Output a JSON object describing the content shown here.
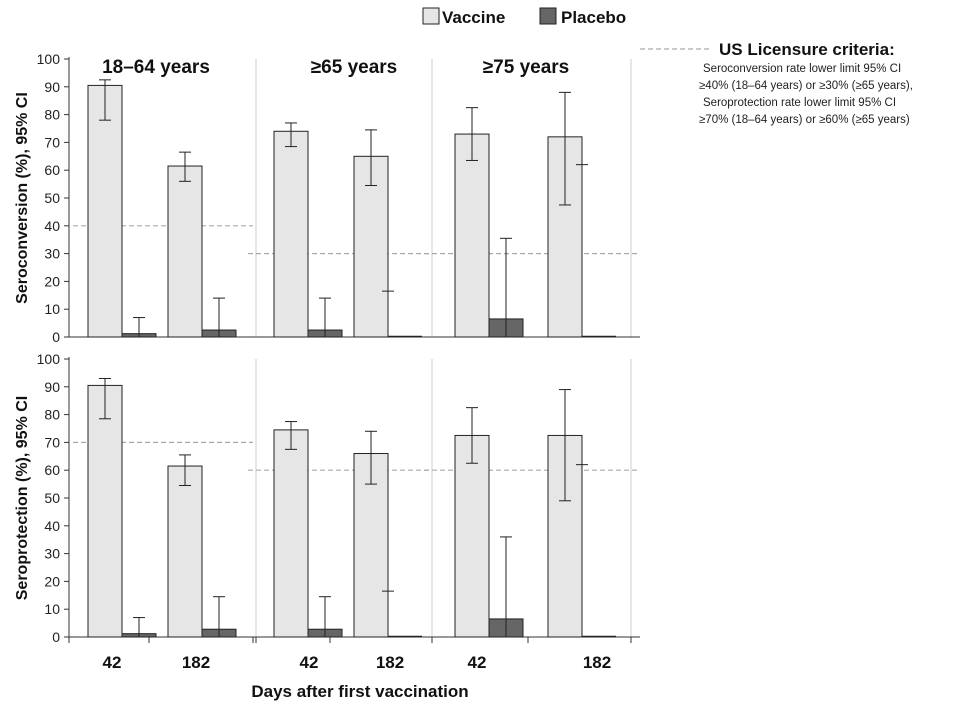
{
  "legend": {
    "items": [
      {
        "label": "Vaccine",
        "color": "#e6e6e6"
      },
      {
        "label": "Placebo",
        "color": "#666666"
      }
    ]
  },
  "criteria": {
    "title": "US Licensure criteria:",
    "lines": [
      "Seroconversion rate lower limit 95% CI",
      "≥40% (18–64  years)  or ≥30%  (≥65 years),",
      "Seroprotection rate lower limit 95% CI",
      "≥70% (18–64  years)  or ≥60%  (≥65 years)"
    ]
  },
  "colors": {
    "vaccine": "#e6e6e6",
    "placebo": "#666666",
    "outline": "#222222",
    "threshold": "#aaaaaa",
    "separator": "#cccccc"
  },
  "chart_data": {
    "type": "bar",
    "xlabel": "Days after first vaccination",
    "ylim": [
      0,
      100
    ],
    "yticks": [
      0,
      10,
      20,
      30,
      40,
      50,
      60,
      70,
      80,
      90,
      100
    ],
    "age_groups": [
      "18–64 years",
      "≥65 years",
      "≥75 years"
    ],
    "days": [
      "42",
      "182"
    ],
    "panels": [
      {
        "ylabel": "Seroconversion (%), 95% CI",
        "thresholds": [
          40,
          30,
          30
        ],
        "groups": [
          {
            "age": "18–64 years",
            "timepoints": [
              {
                "day": "42",
                "vaccine": {
                  "value": 90.5,
                  "ci": [
                    78,
                    92.5
                  ]
                },
                "placebo": {
                  "value": 1.2,
                  "ci": [
                    0,
                    7
                  ]
                }
              },
              {
                "day": "182",
                "vaccine": {
                  "value": 61.5,
                  "ci": [
                    56,
                    66.5
                  ]
                },
                "placebo": {
                  "value": 2.5,
                  "ci": [
                    0,
                    14
                  ]
                }
              }
            ]
          },
          {
            "age": "≥65 years",
            "timepoints": [
              {
                "day": "42",
                "vaccine": {
                  "value": 74,
                  "ci": [
                    68.5,
                    77
                  ]
                },
                "placebo": {
                  "value": 2.5,
                  "ci": [
                    0,
                    14
                  ]
                }
              },
              {
                "day": "182",
                "vaccine": {
                  "value": 65,
                  "ci": [
                    54.5,
                    74.5
                  ]
                },
                "placebo": {
                  "value": 0,
                  "ci": [
                    0,
                    16.5
                  ]
                }
              }
            ]
          },
          {
            "age": "≥75 years",
            "timepoints": [
              {
                "day": "42",
                "vaccine": {
                  "value": 73,
                  "ci": [
                    63.5,
                    82.5
                  ]
                },
                "placebo": {
                  "value": 6.5,
                  "ci": [
                    0,
                    35.5
                  ]
                }
              },
              {
                "day": "182",
                "vaccine": {
                  "value": 72,
                  "ci": [
                    47.5,
                    88
                  ]
                },
                "placebo": {
                  "value": 0,
                  "ci": [
                    0,
                    62
                  ]
                }
              }
            ]
          }
        ]
      },
      {
        "ylabel": "Seroprotection (%), 95% CI",
        "thresholds": [
          70,
          60,
          60
        ],
        "groups": [
          {
            "age": "18–64 years",
            "timepoints": [
              {
                "day": "42",
                "vaccine": {
                  "value": 90.5,
                  "ci": [
                    78.5,
                    93
                  ]
                },
                "placebo": {
                  "value": 1.2,
                  "ci": [
                    0,
                    7
                  ]
                }
              },
              {
                "day": "182",
                "vaccine": {
                  "value": 61.5,
                  "ci": [
                    54.5,
                    65.5
                  ]
                },
                "placebo": {
                  "value": 2.8,
                  "ci": [
                    0,
                    14.5
                  ]
                }
              }
            ]
          },
          {
            "age": "≥65 years",
            "timepoints": [
              {
                "day": "42",
                "vaccine": {
                  "value": 74.5,
                  "ci": [
                    67.5,
                    77.5
                  ]
                },
                "placebo": {
                  "value": 2.8,
                  "ci": [
                    0,
                    14.5
                  ]
                }
              },
              {
                "day": "182",
                "vaccine": {
                  "value": 66,
                  "ci": [
                    55,
                    74
                  ]
                },
                "placebo": {
                  "value": 0,
                  "ci": [
                    0,
                    16.5
                  ]
                }
              }
            ]
          },
          {
            "age": "≥75 years",
            "timepoints": [
              {
                "day": "42",
                "vaccine": {
                  "value": 72.5,
                  "ci": [
                    62.5,
                    82.5
                  ]
                },
                "placebo": {
                  "value": 6.5,
                  "ci": [
                    0,
                    36
                  ]
                }
              },
              {
                "day": "182",
                "vaccine": {
                  "value": 72.5,
                  "ci": [
                    49,
                    89
                  ]
                },
                "placebo": {
                  "value": 0,
                  "ci": [
                    0,
                    62
                  ]
                }
              }
            ]
          }
        ]
      }
    ]
  }
}
